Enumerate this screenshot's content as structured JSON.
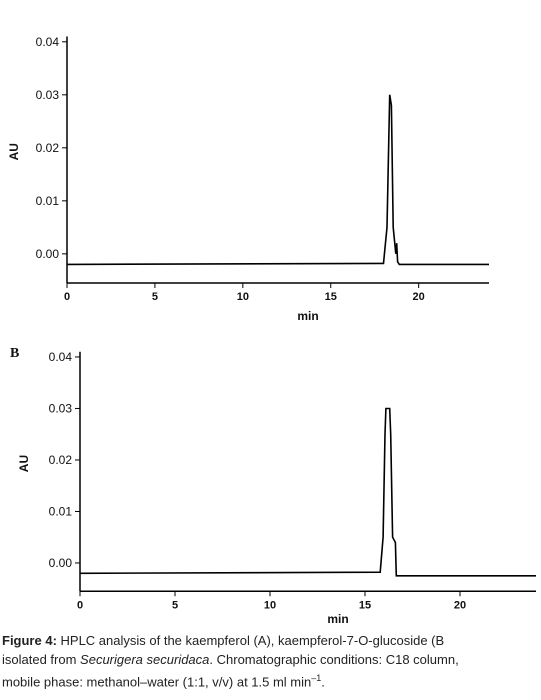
{
  "chart_data": [
    {
      "type": "line",
      "x_label": "min",
      "y_label": "AU",
      "x": [
        0,
        18.0,
        18.2,
        18.35,
        18.45,
        18.55,
        18.7,
        18.75,
        18.8,
        18.9,
        24
      ],
      "values": [
        -0.002,
        -0.0018,
        0.005,
        0.03,
        0.028,
        0.005,
        0.0,
        0.002,
        -0.0015,
        -0.002,
        -0.002
      ],
      "color": "#000000",
      "xlim": [
        0,
        24
      ],
      "ylim": [
        -0.0055,
        0.041
      ],
      "xticks": [
        0,
        5,
        10,
        15,
        20
      ],
      "yticks": [
        {
          "value": 0,
          "label": "0.00"
        },
        0.01,
        0.02,
        0.03,
        0.04
      ]
    },
    {
      "type": "line",
      "panel_label": "B",
      "x_label": "min",
      "y_label": "AU",
      "x": [
        0,
        15.8,
        15.95,
        16.05,
        16.1,
        16.3,
        16.35,
        16.45,
        16.6,
        16.65,
        24
      ],
      "values": [
        -0.002,
        -0.0018,
        0.005,
        0.025,
        0.03,
        0.03,
        0.025,
        0.005,
        0.004,
        -0.0025,
        -0.0025
      ],
      "color": "#000000",
      "xlim": [
        0,
        24
      ],
      "ylim": [
        -0.0055,
        0.041
      ],
      "xticks": [
        0,
        5,
        10,
        15,
        20
      ],
      "yticks": [
        {
          "value": 0,
          "label": "0.00"
        },
        0.01,
        0.02,
        0.03,
        0.04
      ]
    }
  ],
  "caption": {
    "lines": [
      [
        {
          "text": "Figure 4:",
          "style": "bold"
        },
        {
          "text": " HPLC analysis of the kaempferol (A), kaempferol-7-O-glucoside (B",
          "style": "normal"
        }
      ],
      [
        {
          "text": "isolated from ",
          "style": "normal"
        },
        {
          "text": "Securigera securidaca",
          "style": "italic"
        },
        {
          "text": ". Chromatographic conditions: C18 column,",
          "style": "normal"
        }
      ],
      [
        {
          "text": "mobile phase: methanol–water (1:1, v/v) at 1.5 ml min",
          "style": "normal"
        },
        {
          "text": "–1",
          "style": "sup"
        },
        {
          "text": ".",
          "style": "normal"
        }
      ]
    ]
  }
}
